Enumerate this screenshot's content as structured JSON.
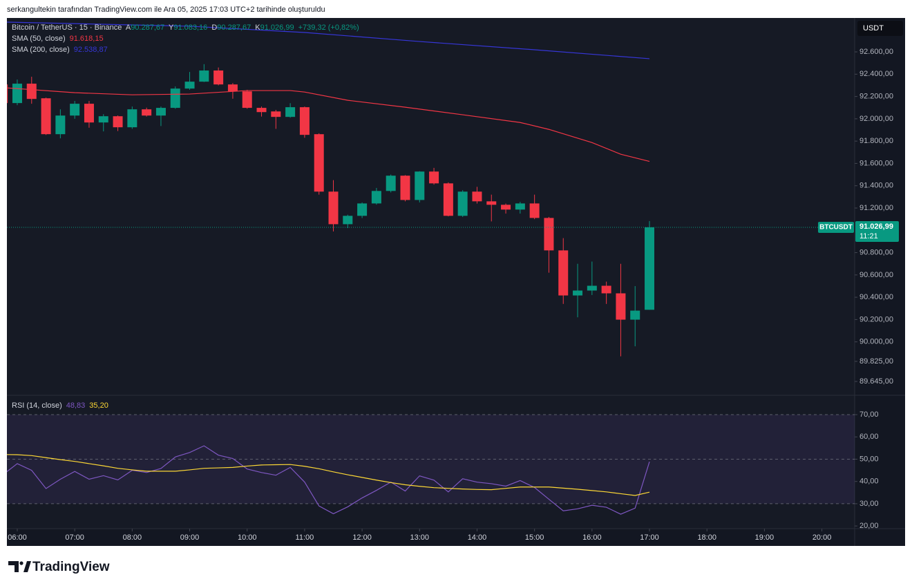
{
  "header": {
    "caption": "serkangultekin tarafından TradingView.com ile Ara 05, 2025 17:03 UTC+2 tarihinde oluşturuldu"
  },
  "legend": {
    "symbol": "Bitcoin / TetherUS · 15 · Binance",
    "o_label": "A",
    "o": "90.287,67",
    "h_label": "Y",
    "h": "91.083,16",
    "l_label": "D",
    "l": "90.287,67",
    "c_label": "K",
    "c": "91.026,99",
    "change": "+739,32 (+0,82%)"
  },
  "currency": "USDT",
  "chart_data": [
    {
      "type": "candlestick",
      "up_color": "#089981",
      "down_color": "#f23645",
      "x": [
        5.75,
        6,
        6.25,
        6.5,
        6.75,
        7,
        7.25,
        7.5,
        7.75,
        8,
        8.25,
        8.5,
        8.75,
        9,
        9.25,
        9.5,
        9.75,
        10,
        10.25,
        10.5,
        10.75,
        11,
        11.25,
        11.5,
        11.75,
        12,
        12.25,
        12.5,
        12.75,
        13,
        13.25,
        13.5,
        13.75,
        14,
        14.25,
        14.5,
        14.75,
        15,
        15.25,
        15.5,
        15.75,
        16,
        16.25,
        16.5,
        16.75,
        17
      ],
      "open": [
        92308,
        92141,
        92315,
        92184,
        91862,
        92029,
        92135,
        91967,
        92023,
        91924,
        92085,
        92029,
        92098,
        92271,
        92333,
        92433,
        92308,
        92246,
        92098,
        92066,
        92017,
        92104,
        91862,
        91347,
        91055,
        91130,
        91241,
        91353,
        91490,
        91272,
        91527,
        91421,
        91130,
        91347,
        91260,
        91229,
        91186,
        91241,
        91111,
        90820,
        90416,
        90460,
        90503,
        90435,
        90199,
        90287.67
      ],
      "high": [
        92350,
        92352,
        92377,
        92190,
        92085,
        92160,
        92160,
        92041,
        92030,
        92110,
        92100,
        92110,
        92290,
        92420,
        92490,
        92460,
        92320,
        92260,
        92110,
        92080,
        92140,
        92110,
        91870,
        91450,
        91140,
        91250,
        91380,
        91500,
        91495,
        91530,
        91560,
        91430,
        91360,
        91390,
        91320,
        91240,
        91255,
        91320,
        91120,
        90930,
        90700,
        90720,
        90540,
        90700,
        90500,
        91083.16
      ],
      "low": [
        92120,
        92122,
        92135,
        91855,
        91825,
        92000,
        91920,
        91887,
        91890,
        91910,
        92020,
        91935,
        92090,
        92260,
        92330,
        92300,
        92180,
        92090,
        92020,
        91910,
        92010,
        91830,
        91320,
        90990,
        91020,
        91110,
        91230,
        91340,
        91260,
        91250,
        91410,
        91125,
        91120,
        91240,
        91080,
        91150,
        91150,
        91100,
        90620,
        90340,
        90220,
        90420,
        90340,
        89870,
        89960,
        90287.67
      ],
      "close": [
        92141,
        92315,
        92178,
        91862,
        92029,
        92135,
        91967,
        92023,
        91924,
        92085,
        92029,
        92098,
        92271,
        92333,
        92433,
        92308,
        92246,
        92098,
        92060,
        92017,
        92104,
        91856,
        91347,
        91055,
        91130,
        91241,
        91353,
        91490,
        91272,
        91527,
        91421,
        91130,
        91347,
        91260,
        91229,
        91186,
        91241,
        91111,
        90820,
        90416,
        90460,
        90503,
        90435,
        90199,
        90280,
        91026.99
      ],
      "series": [
        {
          "name": "SMA (50, close)",
          "color": "#f23645",
          "value_label": "91.618,15",
          "x": [
            5.82,
            7,
            8,
            9,
            10,
            10.75,
            11,
            11.75,
            12.75,
            13.75,
            14.75,
            15.25,
            16,
            16.5,
            17
          ],
          "values": [
            92277,
            92234,
            92215,
            92222,
            92253,
            92253,
            92240,
            92166,
            92104,
            92036,
            91967,
            91905,
            91787,
            91682,
            91618.15
          ]
        },
        {
          "name": "SMA (200, close)",
          "color": "#3636d8",
          "value_label": "92.538,87",
          "x": [
            5.82,
            9,
            11,
            13,
            15,
            17
          ],
          "values": [
            92867,
            92830,
            92774,
            92693,
            92619,
            92538.87
          ]
        }
      ],
      "last_price": {
        "symbol": "BTCUSDT",
        "label": "91.026,99",
        "countdown": "11:21"
      },
      "xlim": [
        5.82,
        20.57
      ],
      "xticks": [
        {
          "value": 6,
          "label": "06:00"
        },
        {
          "value": 7,
          "label": "07:00"
        },
        {
          "value": 8,
          "label": "08:00"
        },
        {
          "value": 9,
          "label": "09:00"
        },
        {
          "value": 10,
          "label": "10:00"
        },
        {
          "value": 11,
          "label": "11:00"
        },
        {
          "value": 12,
          "label": "12:00"
        },
        {
          "value": 13,
          "label": "13:00"
        },
        {
          "value": 14,
          "label": "14:00"
        },
        {
          "value": 15,
          "label": "15:00"
        },
        {
          "value": 16,
          "label": "16:00"
        },
        {
          "value": 17,
          "label": "17:00"
        },
        {
          "value": 18,
          "label": "18:00"
        },
        {
          "value": 19,
          "label": "19:00"
        },
        {
          "value": 20,
          "label": "20:00"
        }
      ],
      "ylim": [
        89521,
        92904
      ],
      "yticks": [
        {
          "value": 92600,
          "label": "92.600,00"
        },
        {
          "value": 92400,
          "label": "92.400,00"
        },
        {
          "value": 92200,
          "label": "92.200,00"
        },
        {
          "value": 92000,
          "label": "92.000,00"
        },
        {
          "value": 91800,
          "label": "91.800,00"
        },
        {
          "value": 91600,
          "label": "91.600,00"
        },
        {
          "value": 91400,
          "label": "91.400,00"
        },
        {
          "value": 91200,
          "label": "91.200,00"
        },
        {
          "value": 90800,
          "label": "90.800,00"
        },
        {
          "value": 90600,
          "label": "90.600,00"
        },
        {
          "value": 90400,
          "label": "90.400,00"
        },
        {
          "value": 90200,
          "label": "90.200,00"
        },
        {
          "value": 90000,
          "label": "90.000,00"
        },
        {
          "value": 89825,
          "label": "89.825,00"
        },
        {
          "value": 89645,
          "label": "89.645,00"
        }
      ]
    },
    {
      "type": "line",
      "title": "RSI (14, close)",
      "x": [
        5.75,
        6,
        6.25,
        6.5,
        6.75,
        7,
        7.25,
        7.5,
        7.75,
        8,
        8.25,
        8.5,
        8.75,
        9,
        9.25,
        9.5,
        9.75,
        10,
        10.25,
        10.5,
        10.75,
        11,
        11.25,
        11.5,
        11.75,
        12,
        12.25,
        12.5,
        12.75,
        13,
        13.25,
        13.5,
        13.75,
        14,
        14.25,
        14.5,
        14.75,
        15,
        15.25,
        15.5,
        15.75,
        16,
        16.25,
        16.5,
        16.75,
        17
      ],
      "series": [
        {
          "color": "#7e57c2",
          "value_label": "48,83",
          "values": [
            43,
            48,
            45,
            36.8,
            41,
            44.5,
            41,
            42.6,
            40.7,
            45,
            44,
            45.8,
            51,
            53,
            56,
            51.8,
            50.3,
            45.6,
            44,
            42.8,
            46.3,
            39.7,
            29,
            25.5,
            28.6,
            32.6,
            36,
            39.7,
            35.7,
            42.5,
            40.6,
            35.3,
            41.2,
            39.7,
            39,
            37.9,
            40.4,
            37.3,
            32,
            26.8,
            27.7,
            29.3,
            28.4,
            25.3,
            28,
            48.83
          ]
        },
        {
          "color": "#fdd835",
          "value_label": "35,20",
          "values": [
            52.1,
            52,
            51.6,
            50.7,
            49.8,
            49,
            48,
            47,
            45.9,
            45.2,
            44.6,
            44.6,
            44.6,
            45.2,
            45.9,
            46.1,
            46.3,
            46.9,
            47.4,
            47.5,
            47.6,
            46.8,
            45.7,
            44.3,
            43,
            41.8,
            40.6,
            39.5,
            38.5,
            37.8,
            37.2,
            36.9,
            36.6,
            36.4,
            36.3,
            36.9,
            37.5,
            37.5,
            37.5,
            37,
            36.5,
            35.9,
            35.3,
            34.5,
            33.7,
            35.2
          ]
        }
      ],
      "band": [
        30,
        70
      ],
      "levels": [
        70,
        50,
        30
      ],
      "xlim": [
        5.82,
        20.57
      ],
      "ylim": [
        18.8,
        78.7
      ],
      "yticks": [
        {
          "value": 70,
          "label": "70,00"
        },
        {
          "value": 60,
          "label": "60,00"
        },
        {
          "value": 50,
          "label": "50,00"
        },
        {
          "value": 40,
          "label": "40,00"
        },
        {
          "value": 30,
          "label": "30,00"
        },
        {
          "value": 20,
          "label": "20,00"
        }
      ]
    }
  ],
  "footer": {
    "brand": "TradingView"
  }
}
